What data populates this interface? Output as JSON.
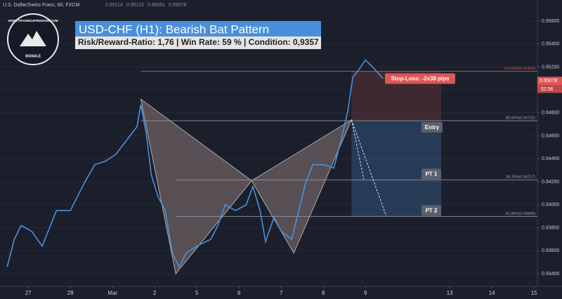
{
  "header": {
    "symbol": "U.S. Dollar/Swiss Franc, 60, FXCM",
    "ohlc": [
      "0.95114",
      "0.95122",
      "0.95051",
      "0.95078"
    ]
  },
  "logo": {
    "url": "WWW.TRADING4FREEDOM.COM",
    "name": "SIGNALE"
  },
  "chart_data": {
    "type": "line",
    "title": "USD-CHF (H1): Bearish Bat Pattern",
    "subtitle": "Risk/Reward-Ratio: 1,76 | Win Rate: 59 % | Condition: 0,9357",
    "x": [
      -0.5,
      -0.33,
      -0.17,
      0.08,
      0.33,
      0.67,
      1,
      1.33,
      1.58,
      1.83,
      2.08,
      2.33,
      2.58,
      2.67,
      2.8,
      2.92,
      3.08,
      3.25,
      3.42,
      3.58,
      3.75,
      4,
      4.33,
      4.5,
      4.67,
      4.92,
      5.17,
      5.33,
      5.5,
      5.63,
      5.83,
      6,
      6.25,
      6.42,
      6.58,
      6.75,
      7,
      7.25,
      7.42,
      7.58,
      7.7,
      7.83,
      8,
      8.17,
      8.42
    ],
    "series": [
      {
        "color": "#4a90d9",
        "values": [
          0.9346,
          0.937,
          0.9382,
          0.9377,
          0.9364,
          0.9395,
          0.9395,
          0.9419,
          0.9435,
          0.9438,
          0.9444,
          0.9456,
          0.9468,
          0.9487,
          0.9462,
          0.9426,
          0.9407,
          0.9395,
          0.9358,
          0.9346,
          0.9358,
          0.9364,
          0.937,
          0.9382,
          0.94,
          0.9395,
          0.94,
          0.9416,
          0.9395,
          0.9368,
          0.9389,
          0.9377,
          0.937,
          0.9395,
          0.9419,
          0.9435,
          0.9435,
          0.9432,
          0.9456,
          0.9481,
          0.9511,
          0.9517,
          0.9526,
          0.952,
          0.951
        ]
      }
    ],
    "pattern": {
      "color": "#c9a9a0",
      "x": [
        2.67,
        3.5,
        5.3,
        6.3,
        7.67
      ],
      "values": [
        0.9492,
        0.934,
        0.9421,
        0.9358,
        0.9474
      ]
    },
    "levels": [
      {
        "label": "113.00%(0.95163)",
        "value": 0.95163,
        "tag": "Stop-Loss: -2x38 pips",
        "color": "#e05555"
      },
      {
        "label": "88.60%(0.94732)",
        "value": 0.94732,
        "tag": "Entry",
        "color": "#9aa0a8"
      },
      {
        "label": "38.20%(0.94217)",
        "value": 0.94217,
        "tag": "PT 1",
        "color": "#9aa0a8"
      },
      {
        "label": "61.80%(0.93899)",
        "value": 0.93899,
        "tag": "PT 2",
        "color": "#9aa0a8"
      }
    ],
    "last_price": {
      "value": 0.95078,
      "label": "0.95078",
      "timer": "52:56"
    },
    "xlim": [
      -0.67,
      12.08
    ],
    "ylim": [
      0.9329,
      0.95783
    ],
    "xticks": [
      {
        "value": 0,
        "label": "27"
      },
      {
        "value": 1,
        "label": "28"
      },
      {
        "value": 2,
        "label": "Mar"
      },
      {
        "value": 3,
        "label": "2"
      },
      {
        "value": 4,
        "label": "5"
      },
      {
        "value": 5,
        "label": "6"
      },
      {
        "value": 6,
        "label": "7"
      },
      {
        "value": 7,
        "label": "8"
      },
      {
        "value": 8,
        "label": "9"
      },
      {
        "value": 10,
        "label": "13"
      },
      {
        "value": 11,
        "label": "14"
      },
      {
        "value": 12,
        "label": "15"
      }
    ],
    "yticks": [
      {
        "value": 0.934,
        "label": "0.93400"
      },
      {
        "value": 0.936,
        "label": "0.93600"
      },
      {
        "value": 0.938,
        "label": "0.93800"
      },
      {
        "value": 0.94,
        "label": "0.94000"
      },
      {
        "value": 0.942,
        "label": "0.94200"
      },
      {
        "value": 0.944,
        "label": "0.94400"
      },
      {
        "value": 0.946,
        "label": "0.94600"
      },
      {
        "value": 0.948,
        "label": "0.94800"
      },
      {
        "value": 0.95,
        "label": "0.95000"
      },
      {
        "value": 0.952,
        "label": "0.95200"
      },
      {
        "value": 0.954,
        "label": "0.95400"
      },
      {
        "value": 0.956,
        "label": "0.95600"
      }
    ]
  }
}
